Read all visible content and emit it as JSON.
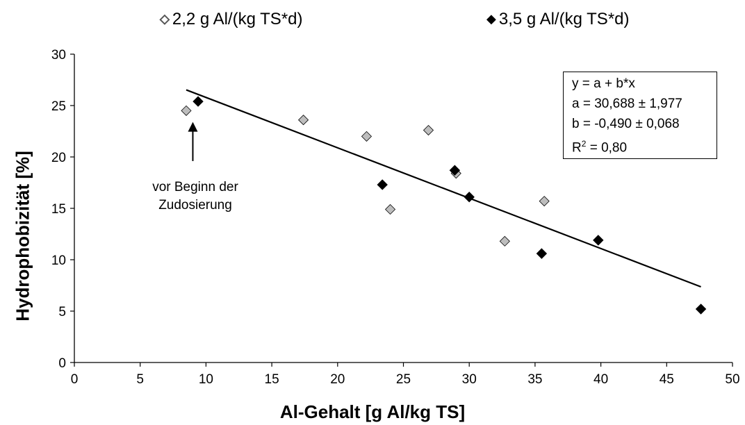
{
  "chart_data": {
    "type": "scatter",
    "xlabel": "Al-Gehalt [g Al/kg TS]",
    "ylabel": "Hydrophobizität [%]",
    "xlim": [
      0,
      50
    ],
    "ylim": [
      0,
      30
    ],
    "x_ticks": [
      0,
      5,
      10,
      15,
      20,
      25,
      30,
      35,
      40,
      45,
      50
    ],
    "y_ticks": [
      0,
      5,
      10,
      15,
      20,
      25,
      30
    ],
    "grid": false,
    "legend_placement": "top",
    "series": [
      {
        "name": "2,2 g Al/(kg TS*d)",
        "marker": "diamond",
        "color": "#bdbdbd",
        "marker_symbol": "◇",
        "points": [
          {
            "x": 8.5,
            "y": 24.5
          },
          {
            "x": 17.4,
            "y": 23.6
          },
          {
            "x": 22.2,
            "y": 22.0
          },
          {
            "x": 24.0,
            "y": 14.9
          },
          {
            "x": 26.9,
            "y": 22.6
          },
          {
            "x": 29.0,
            "y": 18.4
          },
          {
            "x": 32.7,
            "y": 11.8
          },
          {
            "x": 35.7,
            "y": 15.7
          }
        ]
      },
      {
        "name": "3,5 g Al/(kg TS*d)",
        "marker": "diamond",
        "color": "#000000",
        "marker_symbol": "◆",
        "points": [
          {
            "x": 9.4,
            "y": 25.4
          },
          {
            "x": 23.4,
            "y": 17.3
          },
          {
            "x": 28.9,
            "y": 18.7
          },
          {
            "x": 30.0,
            "y": 16.1
          },
          {
            "x": 35.5,
            "y": 10.6
          },
          {
            "x": 39.8,
            "y": 11.9
          },
          {
            "x": 47.6,
            "y": 5.2
          }
        ]
      }
    ],
    "regression": {
      "a": 30.688,
      "b": -0.49,
      "x_range": [
        8.5,
        47.6
      ]
    },
    "regression_box": {
      "line1": "y = a + b*x",
      "line2": "a = 30,688 ± 1,977",
      "line3": "b = -0,490 ± 0,068",
      "line4_prefix": "R",
      "line4_sup": "2",
      "line4_suffix": " = 0,80"
    },
    "annotation": {
      "line1": "vor Beginn der",
      "line2": "Zudosierung",
      "arrow_target": {
        "x": 9.0,
        "y": 23.4
      },
      "arrow_tail": {
        "x": 9.0,
        "y": 19.6
      }
    }
  }
}
